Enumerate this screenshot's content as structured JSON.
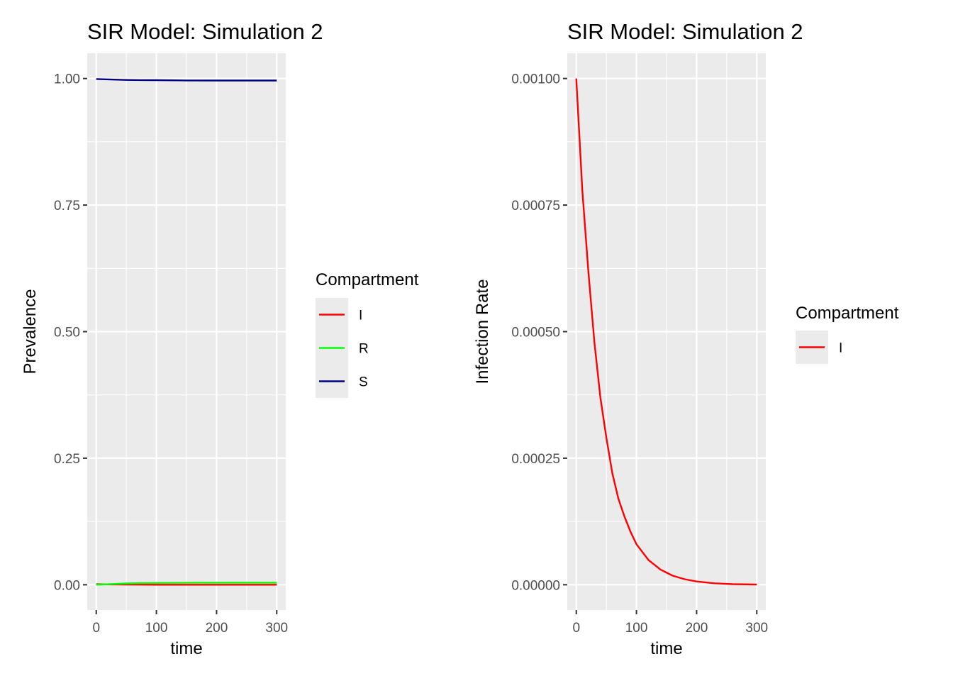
{
  "chart_data": [
    {
      "type": "line",
      "title": "SIR Model: Simulation 2",
      "xlabel": "time",
      "ylabel": "Prevalence",
      "xlim": [
        -15,
        315
      ],
      "ylim": [
        -0.05,
        1.05
      ],
      "x_ticks": [
        0,
        100,
        200,
        300
      ],
      "x_tick_labels": [
        "0",
        "100",
        "200",
        "300"
      ],
      "y_ticks": [
        0,
        0.25,
        0.5,
        0.75,
        1
      ],
      "y_tick_labels": [
        "0.00",
        "0.25",
        "0.50",
        "0.75",
        "1.00"
      ],
      "grid": true,
      "legend": {
        "title": "Compartment",
        "position": "right"
      },
      "x": [
        0,
        25,
        50,
        75,
        100,
        150,
        200,
        250,
        300
      ],
      "series": [
        {
          "name": "I",
          "color": "#ff0000",
          "values": [
            0.001,
            0.0006,
            0.00028,
            0.00016,
            8e-05,
            2e-05,
            5e-06,
            1e-06,
            0.0
          ]
        },
        {
          "name": "R",
          "color": "#00ff00",
          "values": [
            0.0,
            0.0013,
            0.0025,
            0.0031,
            0.0035,
            0.0038,
            0.0039,
            0.0039,
            0.0039
          ]
        },
        {
          "name": "S",
          "color": "#000080",
          "values": [
            0.999,
            0.998,
            0.9972,
            0.9969,
            0.9967,
            0.9962,
            0.9961,
            0.9961,
            0.9961
          ]
        }
      ]
    },
    {
      "type": "line",
      "title": "SIR Model: Simulation 2",
      "xlabel": "time",
      "ylabel": "Infection Rate",
      "xlim": [
        -15,
        315
      ],
      "ylim": [
        -5e-05,
        0.00105
      ],
      "x_ticks": [
        0,
        100,
        200,
        300
      ],
      "x_tick_labels": [
        "0",
        "100",
        "200",
        "300"
      ],
      "y_ticks": [
        0,
        0.00025,
        0.0005,
        0.00075,
        0.001
      ],
      "y_tick_labels": [
        "0.00000",
        "0.00025",
        "0.00050",
        "0.00075",
        "0.00100"
      ],
      "grid": true,
      "legend": {
        "title": "Compartment",
        "position": "right"
      },
      "x": [
        0,
        10,
        20,
        30,
        40,
        50,
        60,
        70,
        80,
        90,
        100,
        120,
        140,
        160,
        180,
        200,
        230,
        260,
        300
      ],
      "series": [
        {
          "name": "I",
          "color": "#ff0000",
          "values": [
            0.001,
            0.00078,
            0.00062,
            0.00048,
            0.00037,
            0.00029,
            0.00022,
            0.00017,
            0.000135,
            0.000105,
            8e-05,
            4.9e-05,
            3e-05,
            1.8e-05,
            1.1e-05,
            6.5e-06,
            2.8e-06,
            1.2e-06,
            4e-07
          ]
        }
      ]
    }
  ]
}
